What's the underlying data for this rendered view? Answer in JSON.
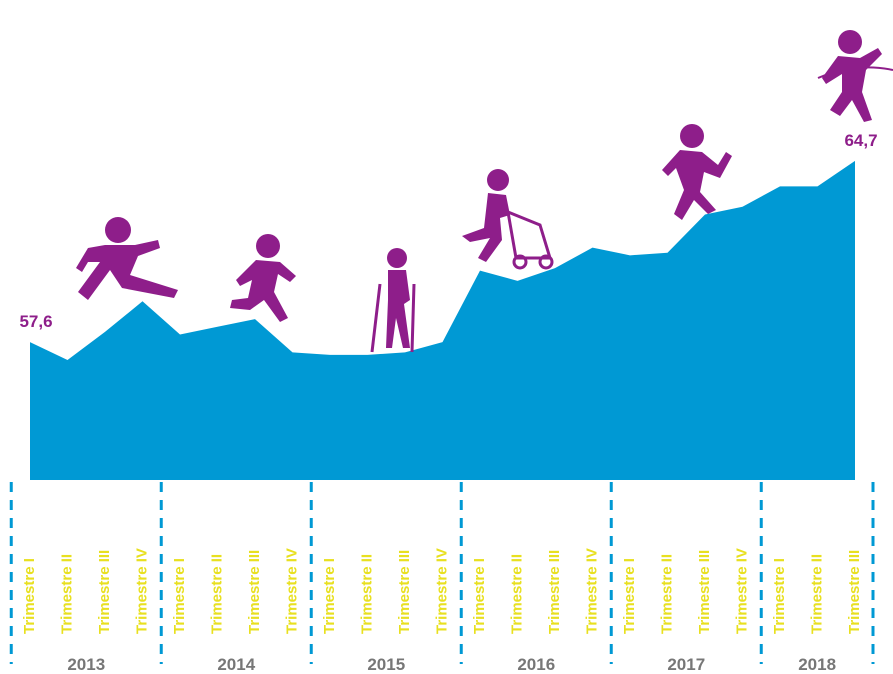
{
  "chart_data": {
    "type": "area",
    "categories": [
      "Trimestre I",
      "Trimestre II",
      "Trimestre III",
      "Trimestre IV",
      "Trimestre I",
      "Trimestre II",
      "Trimestre III",
      "Trimestre IV",
      "Trimestre I",
      "Trimestre II",
      "Trimestre III",
      "Trimestre IV",
      "Trimestre I",
      "Trimestre II",
      "Trimestre III",
      "Trimestre IV",
      "Trimestre I",
      "Trimestre II",
      "Trimestre III",
      "Trimestre IV",
      "Trimestre I",
      "Trimestre II",
      "Trimestre III"
    ],
    "groups": [
      "2013",
      "2014",
      "2015",
      "2016",
      "2017",
      "2018"
    ],
    "values": [
      57.6,
      56.9,
      58.0,
      59.2,
      57.9,
      58.2,
      58.5,
      57.2,
      57.1,
      57.1,
      57.2,
      57.6,
      60.4,
      60.0,
      60.5,
      61.3,
      61.0,
      61.1,
      62.6,
      62.9,
      63.7,
      63.7,
      64.7
    ],
    "value_labels": [
      "57,6",
      null,
      null,
      null,
      null,
      null,
      null,
      null,
      null,
      null,
      null,
      null,
      null,
      null,
      null,
      null,
      null,
      null,
      null,
      null,
      null,
      null,
      "64,7"
    ],
    "color": "#0099d4",
    "ylim": [
      52.2,
      71
    ],
    "grid": false
  }
}
